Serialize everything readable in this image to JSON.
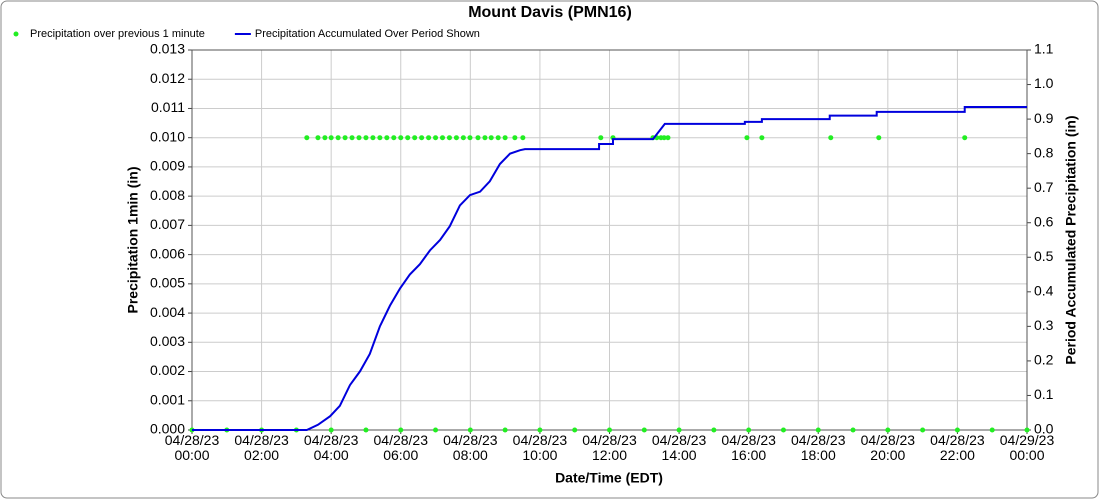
{
  "chart_data": {
    "type": "line",
    "title": "Mount Davis (PMN16)",
    "x_label": "Date/Time (EDT)",
    "y_label": "Precipitation 1min (in)",
    "y2_label": "Period Accumulated Precipitation (in)",
    "xlim": [
      0,
      24
    ],
    "xticks": [
      {
        "value": 0,
        "label": "04/28/23\n00:00"
      },
      {
        "value": 2,
        "label": "04/28/23\n02:00"
      },
      {
        "value": 4,
        "label": "04/28/23\n04:00"
      },
      {
        "value": 6,
        "label": "04/28/23\n06:00"
      },
      {
        "value": 8,
        "label": "04/28/23\n08:00"
      },
      {
        "value": 10,
        "label": "04/28/23\n10:00"
      },
      {
        "value": 12,
        "label": "04/28/23\n12:00"
      },
      {
        "value": 14,
        "label": "04/28/23\n14:00"
      },
      {
        "value": 16,
        "label": "04/28/23\n16:00"
      },
      {
        "value": 18,
        "label": "04/28/23\n18:00"
      },
      {
        "value": 20,
        "label": "04/28/23\n20:00"
      },
      {
        "value": 22,
        "label": "04/28/23\n22:00"
      },
      {
        "value": 24,
        "label": "04/29/23\n00:00"
      }
    ],
    "ylim": [
      0,
      0.013
    ],
    "yticks": [
      {
        "value": 0,
        "label": "0.000"
      },
      {
        "value": 0.001,
        "label": "0.001"
      },
      {
        "value": 0.002,
        "label": "0.002"
      },
      {
        "value": 0.003,
        "label": "0.003"
      },
      {
        "value": 0.004,
        "label": "0.004"
      },
      {
        "value": 0.005,
        "label": "0.005"
      },
      {
        "value": 0.006,
        "label": "0.006"
      },
      {
        "value": 0.007,
        "label": "0.007"
      },
      {
        "value": 0.008,
        "label": "0.008"
      },
      {
        "value": 0.009,
        "label": "0.009"
      },
      {
        "value": 0.01,
        "label": "0.010"
      },
      {
        "value": 0.011,
        "label": "0.011"
      },
      {
        "value": 0.012,
        "label": "0.012"
      },
      {
        "value": 0.013,
        "label": "0.013"
      }
    ],
    "y2lim": [
      0,
      1.1
    ],
    "y2ticks": [
      {
        "value": 0,
        "label": "0.0"
      },
      0.1,
      0.2,
      0.3,
      0.4,
      0.5,
      0.6,
      0.7,
      0.8,
      0.9,
      {
        "value": 1,
        "label": "1.0"
      },
      1.1
    ],
    "grid": true,
    "series": [
      {
        "name": "Precipitation over previous 1 minute",
        "color": "#22ee22",
        "style": "scatter",
        "x": [
          3.3,
          3.62,
          3.82,
          4.0,
          4.2,
          4.4,
          4.6,
          4.8,
          5.0,
          5.2,
          5.4,
          5.6,
          5.8,
          6.0,
          6.2,
          6.4,
          6.6,
          6.8,
          7.0,
          7.2,
          7.4,
          7.6,
          7.8,
          7.99,
          8.22,
          8.42,
          8.6,
          8.8,
          9.0,
          9.28,
          9.51,
          11.75,
          12.1,
          13.25,
          13.36,
          13.48,
          13.57,
          13.68,
          15.95,
          16.38,
          18.36,
          19.74,
          22.21,
          0,
          1,
          2,
          3,
          4,
          5,
          6,
          7,
          8,
          9,
          10,
          11,
          12,
          13,
          14,
          15,
          16,
          17,
          18,
          19,
          20,
          21,
          22,
          23,
          24
        ],
        "values": [
          0.01,
          0.01,
          0.01,
          0.01,
          0.01,
          0.01,
          0.01,
          0.01,
          0.01,
          0.01,
          0.01,
          0.01,
          0.01,
          0.01,
          0.01,
          0.01,
          0.01,
          0.01,
          0.01,
          0.01,
          0.01,
          0.01,
          0.01,
          0.01,
          0.01,
          0.01,
          0.01,
          0.01,
          0.01,
          0.01,
          0.01,
          0.01,
          0.01,
          0.01,
          0.01,
          0.01,
          0.01,
          0.01,
          0.01,
          0.01,
          0.01,
          0.01,
          0.01,
          0,
          0,
          0,
          0,
          0,
          0,
          0,
          0,
          0,
          0,
          0,
          0,
          0,
          0,
          0,
          0,
          0,
          0,
          0,
          0,
          0,
          0,
          0,
          0,
          0
        ]
      },
      {
        "name": "Precipitation Accumulated Over Period Shown",
        "color": "#0000dd",
        "style": "line",
        "axis": "y2",
        "x": [
          0,
          3.3,
          3.62,
          3.97,
          4.25,
          4.54,
          4.83,
          5.11,
          5.4,
          5.69,
          5.98,
          6.26,
          6.55,
          6.84,
          7.13,
          7.41,
          7.7,
          7.99,
          8.28,
          8.56,
          8.85,
          9.14,
          9.43,
          9.57,
          11.7,
          11.7,
          12.1,
          12.1,
          13.25,
          13.59,
          15.89,
          15.89,
          16.38,
          16.38,
          18.33,
          18.33,
          19.68,
          19.68,
          22.21,
          22.21,
          24
        ],
        "values": [
          0,
          0,
          0.015,
          0.04,
          0.07,
          0.13,
          0.17,
          0.22,
          0.3,
          0.36,
          0.41,
          0.45,
          0.48,
          0.52,
          0.55,
          0.59,
          0.65,
          0.68,
          0.69,
          0.72,
          0.77,
          0.8,
          0.81,
          0.813,
          0.813,
          0.828,
          0.828,
          0.842,
          0.842,
          0.886,
          0.886,
          0.892,
          0.892,
          0.9,
          0.9,
          0.91,
          0.91,
          0.921,
          0.921,
          0.935,
          0.935
        ]
      }
    ]
  }
}
